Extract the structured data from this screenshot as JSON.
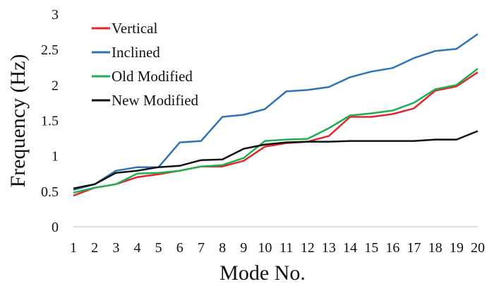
{
  "chart_data": {
    "type": "line",
    "xlabel": "Mode No.",
    "ylabel": "Frequency (Hz)",
    "ylim": [
      0,
      3
    ],
    "yticks": [
      "0",
      "0.5",
      "1",
      "1.5",
      "2",
      "2.5",
      "3"
    ],
    "x": [
      1,
      2,
      3,
      4,
      5,
      6,
      7,
      8,
      9,
      10,
      11,
      12,
      13,
      14,
      15,
      16,
      17,
      18,
      19,
      20
    ],
    "xticks": [
      "1",
      "2",
      "3",
      "4",
      "5",
      "6",
      "7",
      "8",
      "9",
      "10",
      "11",
      "12",
      "13",
      "14",
      "15",
      "16",
      "17",
      "18",
      "19",
      "20"
    ],
    "grid": false,
    "legend_position": "top-left",
    "series": [
      {
        "name": "Vertical",
        "color": "#e3262b",
        "values": [
          0.44,
          0.55,
          0.6,
          0.7,
          0.74,
          0.79,
          0.85,
          0.85,
          0.93,
          1.13,
          1.18,
          1.2,
          1.28,
          1.55,
          1.55,
          1.59,
          1.67,
          1.92,
          1.98,
          2.18
        ]
      },
      {
        "name": "Inclined",
        "color": "#2e74b5",
        "values": [
          0.52,
          0.6,
          0.79,
          0.84,
          0.84,
          1.19,
          1.21,
          1.55,
          1.58,
          1.66,
          1.91,
          1.93,
          1.97,
          2.11,
          2.19,
          2.24,
          2.38,
          2.48,
          2.51,
          2.72
        ]
      },
      {
        "name": "Old Modified",
        "color": "#1fae50",
        "values": [
          0.48,
          0.55,
          0.6,
          0.75,
          0.76,
          0.79,
          0.85,
          0.87,
          0.97,
          1.21,
          1.23,
          1.24,
          1.39,
          1.57,
          1.6,
          1.64,
          1.75,
          1.94,
          2.0,
          2.23
        ]
      },
      {
        "name": "New Modified",
        "color": "#111111",
        "values": [
          0.54,
          0.6,
          0.76,
          0.79,
          0.84,
          0.86,
          0.94,
          0.95,
          1.1,
          1.16,
          1.19,
          1.2,
          1.2,
          1.21,
          1.21,
          1.21,
          1.21,
          1.23,
          1.23,
          1.35
        ]
      }
    ]
  }
}
